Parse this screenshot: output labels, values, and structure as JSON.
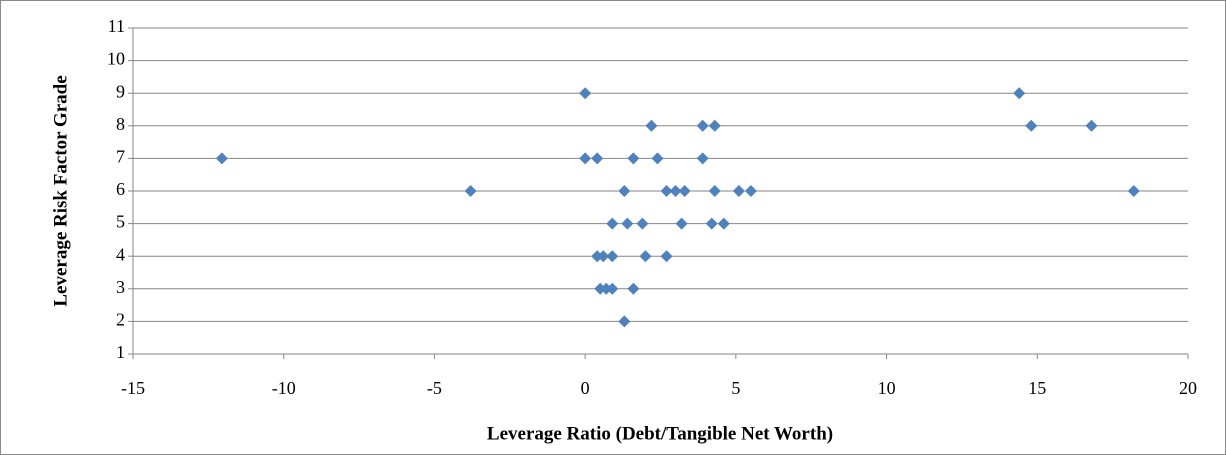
{
  "chart_data": {
    "type": "scatter",
    "x_label": "Leverage Ratio (Debt/Tangible Net Worth)",
    "y_label": "Leverage Risk Factor Grade",
    "x": [
      0,
      14.4,
      2.2,
      3.9,
      4.3,
      14.8,
      16.8,
      -12.05,
      0,
      0.4,
      1.6,
      2.4,
      3.9,
      -3.8,
      1.3,
      2.7,
      3.0,
      3.3,
      4.3,
      5.1,
      5.5,
      18.2,
      0.9,
      1.4,
      1.9,
      3.2,
      4.2,
      4.6,
      0.4,
      0.6,
      0.9,
      2.0,
      2.7,
      0.5,
      0.7,
      0.9,
      1.6,
      1.3
    ],
    "values": [
      9,
      9,
      8,
      8,
      8,
      8,
      8,
      7,
      7,
      7,
      7,
      7,
      7,
      6,
      6,
      6,
      6,
      6,
      6,
      6,
      6,
      6,
      5,
      5,
      5,
      5,
      5,
      5,
      4,
      4,
      4,
      4,
      4,
      3,
      3,
      3,
      3,
      2
    ],
    "color": "#4f81bd",
    "xlim": [
      -15,
      20
    ],
    "xticks": [
      -15,
      -10,
      -5,
      0,
      5,
      10,
      15,
      20
    ],
    "ylim": [
      1,
      11
    ],
    "yticks": [
      1,
      2,
      3,
      4,
      5,
      6,
      7,
      8,
      9,
      10,
      11
    ],
    "grid": true
  }
}
